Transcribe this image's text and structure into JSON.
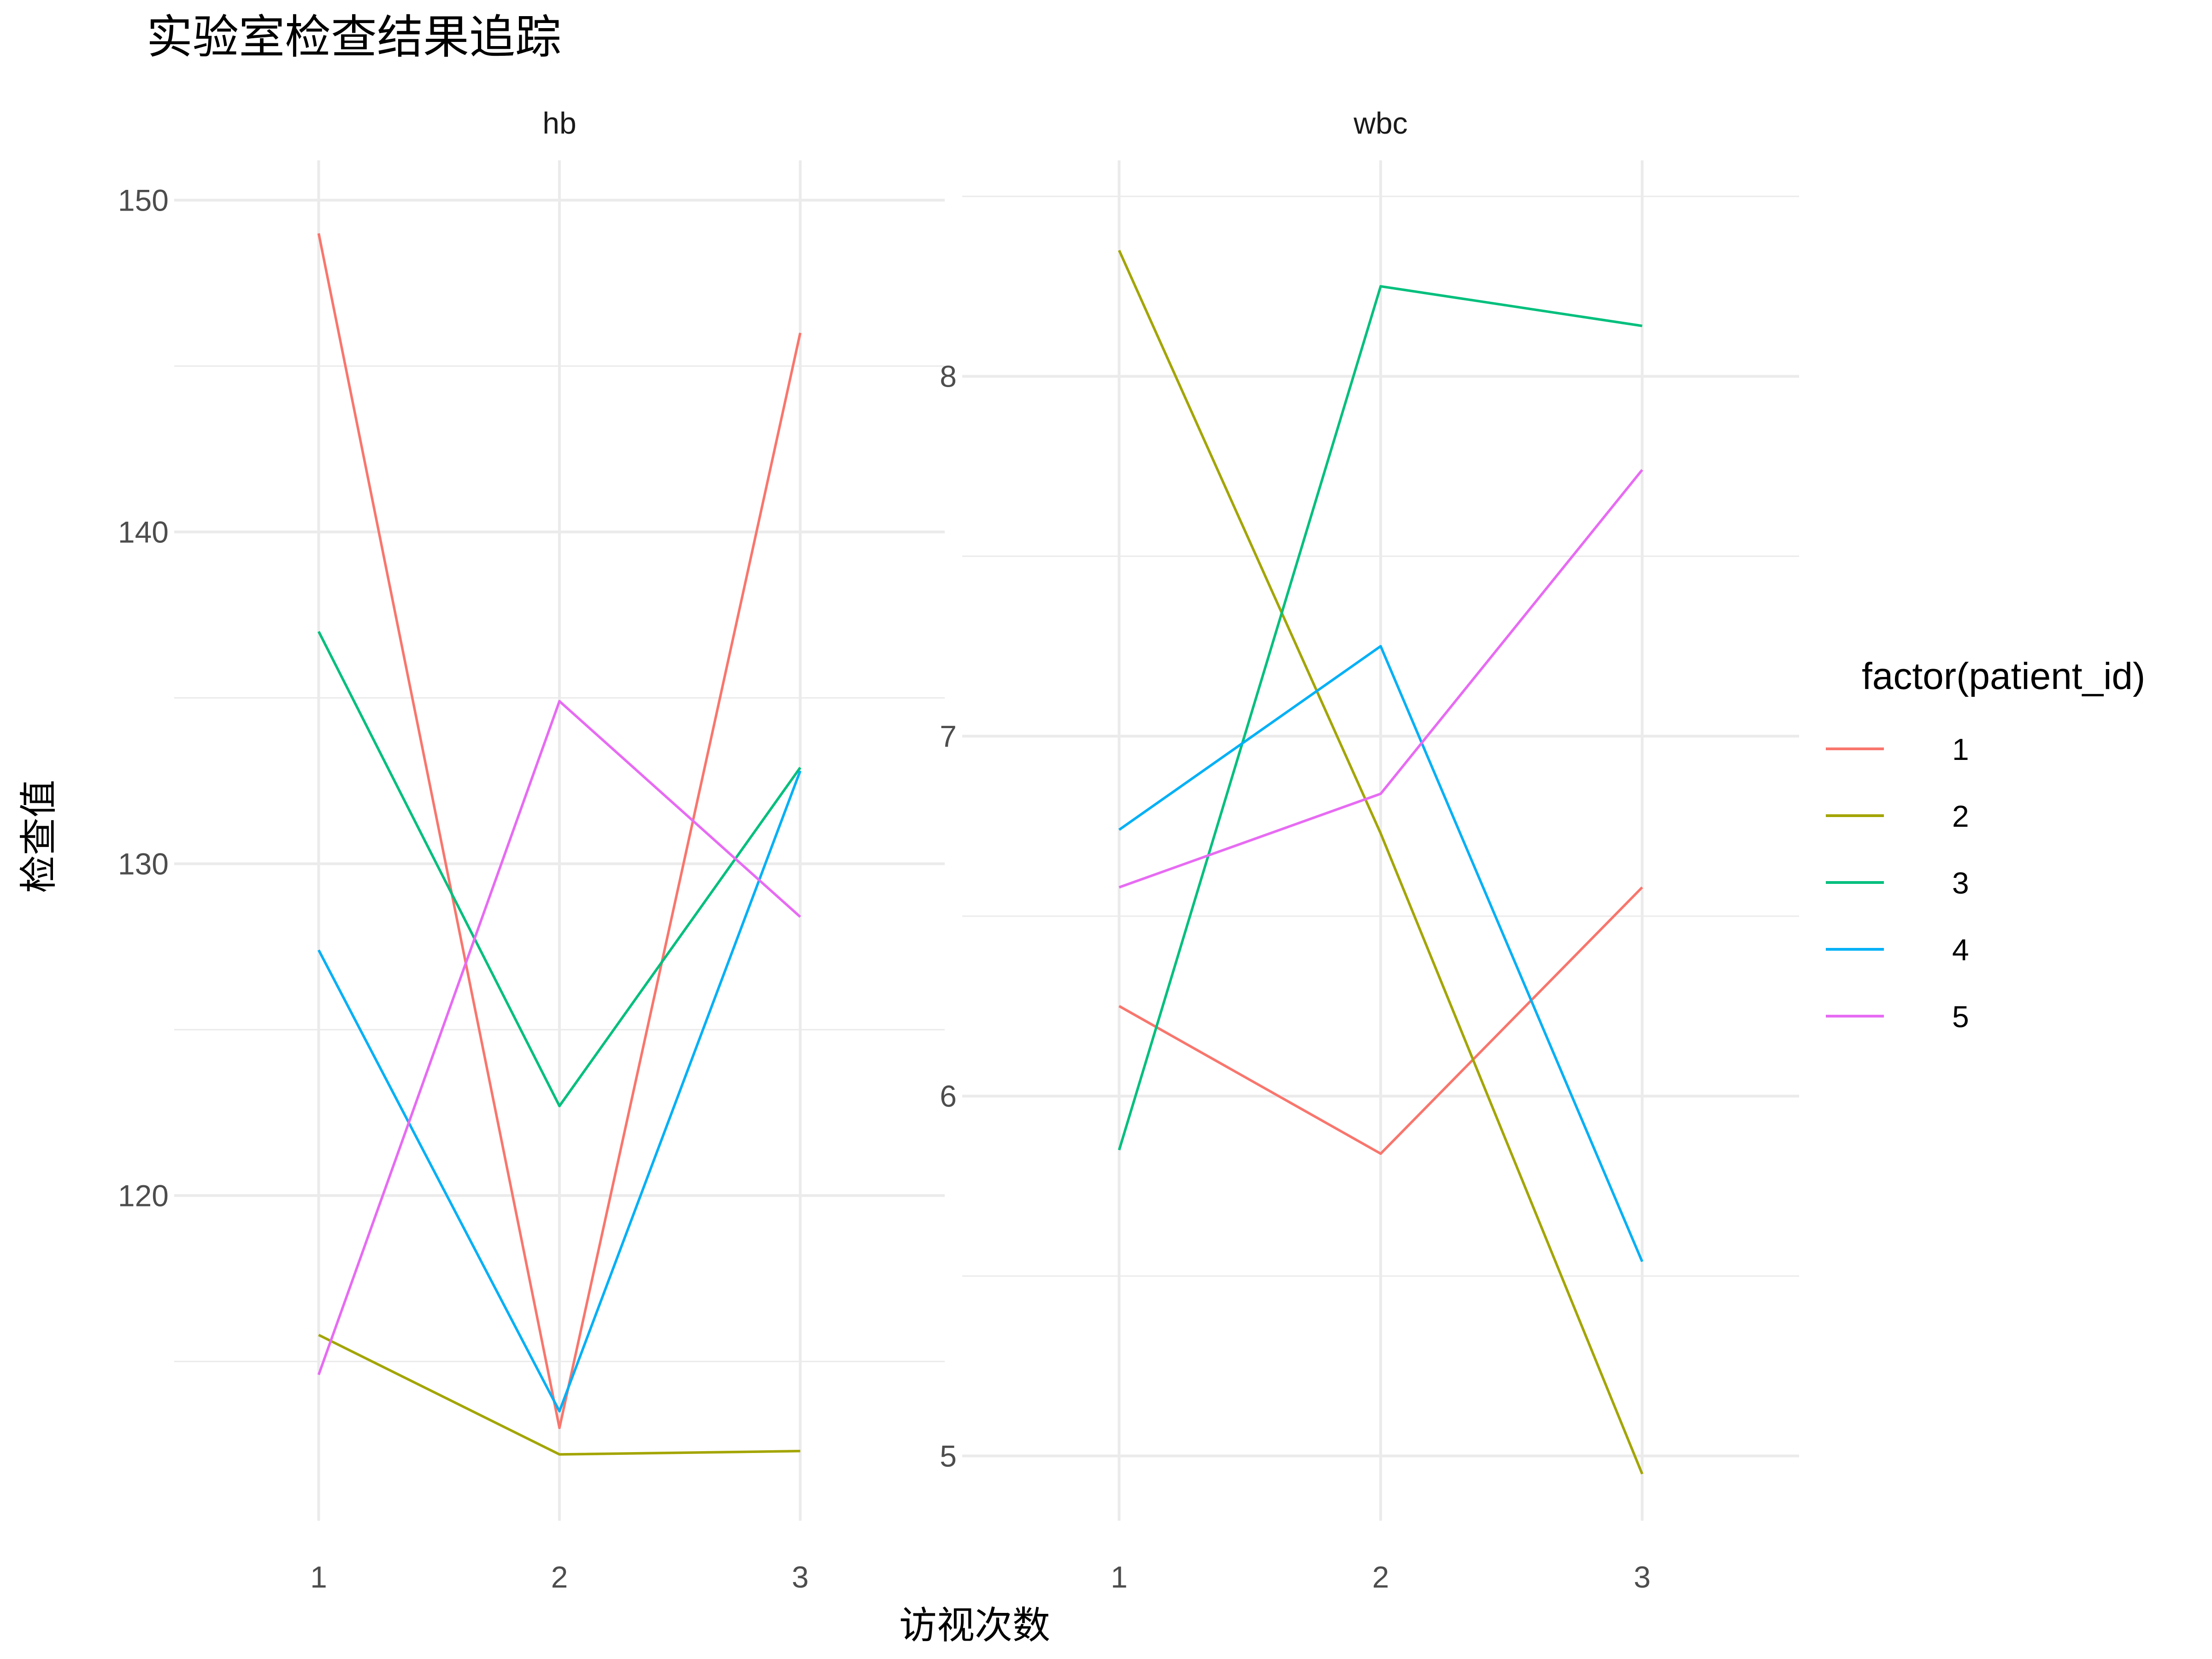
{
  "chart_data": {
    "type": "line",
    "title": "实验室检查结果追踪",
    "xlabel": "访视次数",
    "ylabel": "检查值",
    "x": [
      1,
      2,
      3
    ],
    "grid": true,
    "legend": {
      "title": "factor(patient_id)",
      "placement": "right",
      "entries": [
        "1",
        "2",
        "3",
        "4",
        "5"
      ]
    },
    "colors": {
      "1": "#F8766D",
      "2": "#A3A500",
      "3": "#00BF7D",
      "4": "#00B0F6",
      "5": "#E76BF3"
    },
    "panels": [
      {
        "strip": "hb",
        "ylim": [
          110.2,
          151.2
        ],
        "yticks": [
          120,
          130,
          140,
          150
        ],
        "yticks_minor": [
          115,
          125,
          135,
          145
        ],
        "series": [
          {
            "name": "1",
            "values": [
              149.0,
              113.0,
              146.0
            ]
          },
          {
            "name": "2",
            "values": [
              115.8,
              112.2,
              112.3
            ]
          },
          {
            "name": "3",
            "values": [
              137.0,
              122.7,
              132.9
            ]
          },
          {
            "name": "4",
            "values": [
              127.4,
              113.5,
              132.8
            ]
          },
          {
            "name": "5",
            "values": [
              114.6,
              134.9,
              128.4
            ]
          }
        ]
      },
      {
        "strip": "wbc",
        "ylim": [
          4.82,
          8.6
        ],
        "yticks": [
          5,
          6,
          7,
          8
        ],
        "yticks_minor": [
          5.5,
          6.5,
          7.5,
          8.5
        ],
        "series": [
          {
            "name": "1",
            "values": [
              6.25,
              5.84,
              6.58
            ]
          },
          {
            "name": "2",
            "values": [
              8.35,
              6.73,
              4.95
            ]
          },
          {
            "name": "3",
            "values": [
              5.85,
              8.25,
              8.14
            ]
          },
          {
            "name": "4",
            "values": [
              6.74,
              7.25,
              5.54
            ]
          },
          {
            "name": "5",
            "values": [
              6.58,
              6.84,
              7.74
            ]
          }
        ]
      }
    ]
  }
}
